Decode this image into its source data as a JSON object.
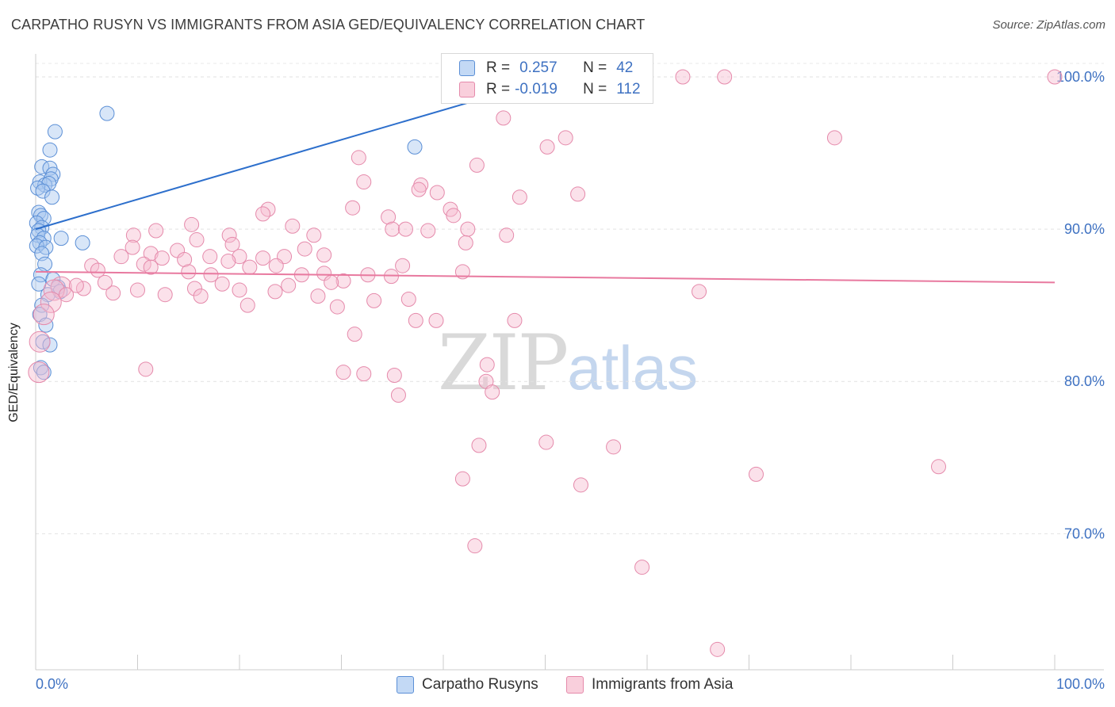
{
  "title": "CARPATHO RUSYN VS IMMIGRANTS FROM ASIA GED/EQUIVALENCY CORRELATION CHART",
  "source": "Source: ZipAtlas.com",
  "watermark": {
    "zip": "ZIP",
    "atlas": "atlas"
  },
  "legend_top": {
    "rows": [
      {
        "r_label": "R =",
        "r_value": "0.257",
        "n_label": "N =",
        "n_value": "42",
        "color": "#a9c8f0"
      },
      {
        "r_label": "R =",
        "r_value": "-0.019",
        "n_label": "N =",
        "n_value": "112",
        "color": "#f6bcd0"
      }
    ]
  },
  "legend_bottom": [
    {
      "label": "Carpatho Rusyns",
      "color": "#a9c8f0"
    },
    {
      "label": "Immigrants from Asia",
      "color": "#f6bcd0"
    }
  ],
  "chart_data": {
    "type": "scatter",
    "title": "CARPATHO RUSYN VS IMMIGRANTS FROM ASIA GED/EQUIVALENCY CORRELATION CHART",
    "xlabel": "",
    "ylabel": "GED/Equivalency",
    "xlim": [
      0,
      100
    ],
    "ylim": [
      60,
      100
    ],
    "x_tick_labels": [
      "0.0%",
      "100.0%"
    ],
    "y_ticks": [
      70,
      80,
      90,
      100
    ],
    "y_tick_labels": [
      "70.0%",
      "80.0%",
      "90.0%",
      "100.0%"
    ],
    "grid": true,
    "series": [
      {
        "name": "Carpatho Rusyns",
        "color": "#a9c8f0",
        "stroke": "#5b8fd6",
        "trend": {
          "x": [
            0,
            46
          ],
          "y": [
            90.0,
            99.0
          ],
          "color": "#2d6fcc"
        },
        "points": [
          [
            7.0,
            97.6
          ],
          [
            1.9,
            96.4
          ],
          [
            1.4,
            95.2
          ],
          [
            37.2,
            95.4
          ],
          [
            0.6,
            94.1
          ],
          [
            1.4,
            94.0
          ],
          [
            1.7,
            93.6
          ],
          [
            1.5,
            93.3
          ],
          [
            0.4,
            93.1
          ],
          [
            0.9,
            92.9
          ],
          [
            1.3,
            93.0
          ],
          [
            0.2,
            92.7
          ],
          [
            0.7,
            92.5
          ],
          [
            1.6,
            92.1
          ],
          [
            0.3,
            91.1
          ],
          [
            0.5,
            90.9
          ],
          [
            0.8,
            90.7
          ],
          [
            0.1,
            90.4
          ],
          [
            0.6,
            90.1
          ],
          [
            0.3,
            89.9
          ],
          [
            0.2,
            89.6
          ],
          [
            0.8,
            89.4
          ],
          [
            2.5,
            89.4
          ],
          [
            0.4,
            89.1
          ],
          [
            0.1,
            88.9
          ],
          [
            1.0,
            88.8
          ],
          [
            4.6,
            89.1
          ],
          [
            0.6,
            88.4
          ],
          [
            0.9,
            87.7
          ],
          [
            0.5,
            87.0
          ],
          [
            1.7,
            86.7
          ],
          [
            0.3,
            86.4
          ],
          [
            2.2,
            86.2
          ],
          [
            2.4,
            85.9
          ],
          [
            1.2,
            85.7
          ],
          [
            0.6,
            85.0
          ],
          [
            0.4,
            84.4
          ],
          [
            1.0,
            83.7
          ],
          [
            0.7,
            82.6
          ],
          [
            1.4,
            82.4
          ],
          [
            0.5,
            80.9
          ],
          [
            0.8,
            80.6
          ]
        ]
      },
      {
        "name": "Immigrants from Asia",
        "color": "#f6bcd0",
        "stroke": "#e58aab",
        "trend": {
          "x": [
            0,
            100
          ],
          "y": [
            87.2,
            86.5
          ],
          "color": "#e8799f"
        },
        "points": [
          [
            63.5,
            100.0
          ],
          [
            67.6,
            100.0
          ],
          [
            100.0,
            100.0
          ],
          [
            44.9,
            99.0
          ],
          [
            45.9,
            97.3
          ],
          [
            52.0,
            96.0
          ],
          [
            78.4,
            96.0
          ],
          [
            50.2,
            95.4
          ],
          [
            31.7,
            94.7
          ],
          [
            43.3,
            94.2
          ],
          [
            32.2,
            93.1
          ],
          [
            37.8,
            92.9
          ],
          [
            37.6,
            92.6
          ],
          [
            39.4,
            92.4
          ],
          [
            53.2,
            92.3
          ],
          [
            47.5,
            92.1
          ],
          [
            31.1,
            91.4
          ],
          [
            22.8,
            91.3
          ],
          [
            40.7,
            91.3
          ],
          [
            22.3,
            91.0
          ],
          [
            34.6,
            90.8
          ],
          [
            41.0,
            90.9
          ],
          [
            15.3,
            90.3
          ],
          [
            25.2,
            90.2
          ],
          [
            35.0,
            90.0
          ],
          [
            36.3,
            90.0
          ],
          [
            42.4,
            90.0
          ],
          [
            38.5,
            89.9
          ],
          [
            9.6,
            89.6
          ],
          [
            19.0,
            89.6
          ],
          [
            27.3,
            89.6
          ],
          [
            46.2,
            89.6
          ],
          [
            15.8,
            89.3
          ],
          [
            19.3,
            89.0
          ],
          [
            42.2,
            89.1
          ],
          [
            26.4,
            88.7
          ],
          [
            13.9,
            88.6
          ],
          [
            11.3,
            88.4
          ],
          [
            17.1,
            88.2
          ],
          [
            20.0,
            88.2
          ],
          [
            22.3,
            88.1
          ],
          [
            24.4,
            88.2
          ],
          [
            28.3,
            88.3
          ],
          [
            8.4,
            88.2
          ],
          [
            12.4,
            88.1
          ],
          [
            14.6,
            88.0
          ],
          [
            18.9,
            87.9
          ],
          [
            10.6,
            87.7
          ],
          [
            21.0,
            87.5
          ],
          [
            23.6,
            87.6
          ],
          [
            15.0,
            87.2
          ],
          [
            28.3,
            87.1
          ],
          [
            32.6,
            87.0
          ],
          [
            41.9,
            87.2
          ],
          [
            11.3,
            87.5
          ],
          [
            5.5,
            87.6
          ],
          [
            6.1,
            87.3
          ],
          [
            17.2,
            87.0
          ],
          [
            26.1,
            87.0
          ],
          [
            34.9,
            86.9
          ],
          [
            2.5,
            86.2
          ],
          [
            4.7,
            86.1
          ],
          [
            10.0,
            86.0
          ],
          [
            15.6,
            86.1
          ],
          [
            20.0,
            86.0
          ],
          [
            30.2,
            86.6
          ],
          [
            4.0,
            86.3
          ],
          [
            1.8,
            86.0
          ],
          [
            7.6,
            85.8
          ],
          [
            23.5,
            85.9
          ],
          [
            3.0,
            85.7
          ],
          [
            12.7,
            85.7
          ],
          [
            16.2,
            85.6
          ],
          [
            27.7,
            85.6
          ],
          [
            33.2,
            85.3
          ],
          [
            36.6,
            85.4
          ],
          [
            65.1,
            85.9
          ],
          [
            1.5,
            85.2
          ],
          [
            20.8,
            85.0
          ],
          [
            29.6,
            84.9
          ],
          [
            0.8,
            84.4
          ],
          [
            37.3,
            84.0
          ],
          [
            39.3,
            84.0
          ],
          [
            47.0,
            84.0
          ],
          [
            31.3,
            83.1
          ],
          [
            0.4,
            82.6
          ],
          [
            10.8,
            80.8
          ],
          [
            30.2,
            80.6
          ],
          [
            32.2,
            80.5
          ],
          [
            44.2,
            80.0
          ],
          [
            0.3,
            80.6
          ],
          [
            35.6,
            79.1
          ],
          [
            44.8,
            79.3
          ],
          [
            43.5,
            75.8
          ],
          [
            50.1,
            76.0
          ],
          [
            56.7,
            75.7
          ],
          [
            41.9,
            73.6
          ],
          [
            53.5,
            73.2
          ],
          [
            70.7,
            73.9
          ],
          [
            88.6,
            74.4
          ],
          [
            43.1,
            69.2
          ],
          [
            59.5,
            67.8
          ],
          [
            66.9,
            62.4
          ],
          [
            35.2,
            80.4
          ],
          [
            44.3,
            81.1
          ],
          [
            11.8,
            89.9
          ],
          [
            36.0,
            87.6
          ],
          [
            29.0,
            86.5
          ],
          [
            24.8,
            86.3
          ],
          [
            18.3,
            86.4
          ],
          [
            6.8,
            86.5
          ],
          [
            9.5,
            88.8
          ]
        ]
      }
    ]
  }
}
